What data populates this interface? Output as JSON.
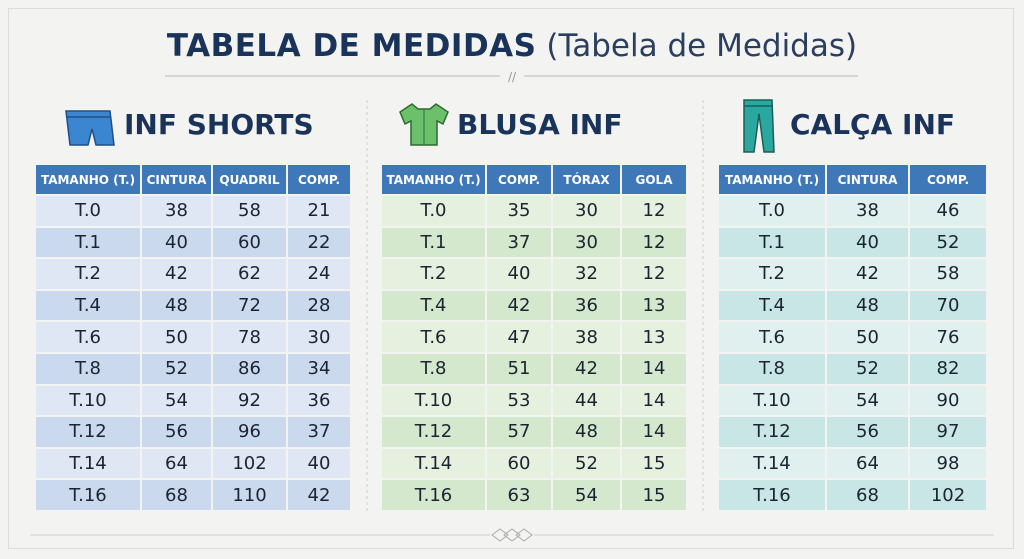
{
  "header": {
    "title": "TABELA DE MEDIDAS",
    "subtitle": "(Tabela de Medidas)"
  },
  "tables": [
    {
      "title": "INF SHORTS",
      "columns": [
        "TAMANHO (T.)",
        "CINTURA",
        "QUADRIL",
        "COMP."
      ],
      "rows": [
        [
          "T.0",
          38,
          58,
          21
        ],
        [
          "T.1",
          40,
          60,
          22
        ],
        [
          "T.2",
          42,
          62,
          24
        ],
        [
          "T.4",
          48,
          72,
          28
        ],
        [
          "T.6",
          50,
          78,
          30
        ],
        [
          "T.8",
          52,
          86,
          34
        ],
        [
          "T.10",
          54,
          92,
          36
        ],
        [
          "T.12",
          56,
          96,
          37
        ],
        [
          "T.14",
          64,
          102,
          40
        ],
        [
          "T.16",
          68,
          110,
          42
        ]
      ]
    },
    {
      "title": "BLUSA INF",
      "columns": [
        "TAMANHO (T.)",
        "COMP.",
        "TÓRAX",
        "GOLA"
      ],
      "rows": [
        [
          "T.0",
          35,
          30,
          12
        ],
        [
          "T.1",
          37,
          30,
          12
        ],
        [
          "T.2",
          40,
          32,
          12
        ],
        [
          "T.4",
          42,
          36,
          13
        ],
        [
          "T.6",
          47,
          38,
          13
        ],
        [
          "T.8",
          51,
          42,
          14
        ],
        [
          "T.10",
          53,
          44,
          14
        ],
        [
          "T.12",
          57,
          48,
          14
        ],
        [
          "T.14",
          60,
          52,
          15
        ],
        [
          "T.16",
          63,
          54,
          15
        ]
      ]
    },
    {
      "title": "CALÇA INF",
      "columns": [
        "TAMANHO (T.)",
        "CINTURA",
        "COMP."
      ],
      "rows": [
        [
          "T.0",
          38,
          46
        ],
        [
          "T.1",
          40,
          52
        ],
        [
          "T.2",
          42,
          58
        ],
        [
          "T.4",
          48,
          70
        ],
        [
          "T.6",
          50,
          76
        ],
        [
          "T.8",
          52,
          82
        ],
        [
          "T.10",
          54,
          90
        ],
        [
          "T.12",
          56,
          97
        ],
        [
          "T.14",
          64,
          98
        ],
        [
          "T.16",
          68,
          102
        ]
      ]
    }
  ]
}
